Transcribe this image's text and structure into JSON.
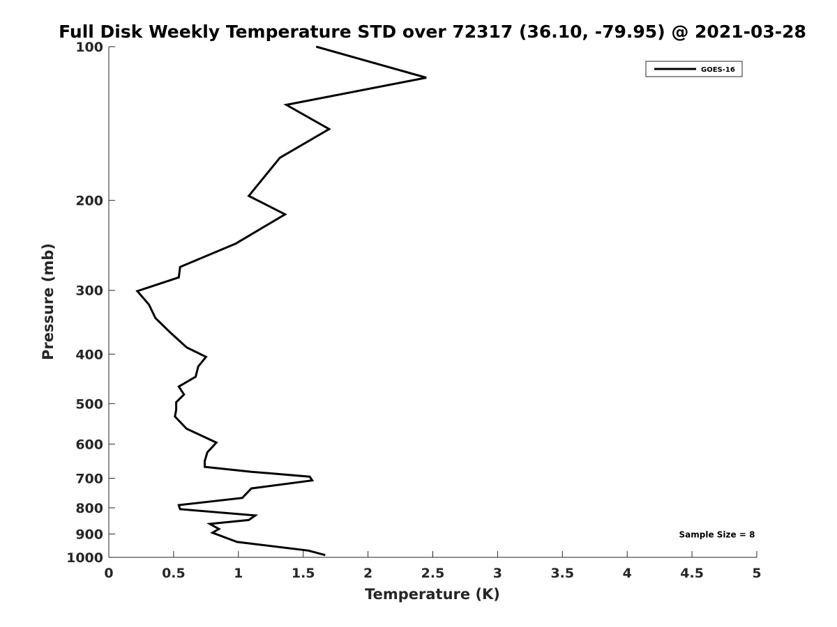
{
  "chart_data": {
    "type": "line",
    "title": "Full Disk Weekly Temperature STD over 72317 (36.10, -79.95) @ 2021-03-28",
    "xlabel": "Temperature (K)",
    "ylabel": "Pressure (mb)",
    "xlim": [
      0,
      5
    ],
    "ylim": [
      100,
      1000
    ],
    "y_scale": "log",
    "y_reversed": true,
    "grid": false,
    "legend_position": "top-right",
    "x_ticks": [
      0,
      0.5,
      1,
      1.5,
      2,
      2.5,
      3,
      3.5,
      4,
      4.5,
      5
    ],
    "x_tick_labels": [
      "0",
      "0.5",
      "1",
      "1.5",
      "2",
      "2.5",
      "3",
      "3.5",
      "4",
      "4.5",
      "5"
    ],
    "y_ticks": [
      100,
      200,
      300,
      400,
      500,
      600,
      700,
      800,
      900,
      1000
    ],
    "y_tick_labels": [
      "100",
      "200",
      "300",
      "400",
      "500",
      "600",
      "700",
      "800",
      "900",
      "1000"
    ],
    "series": [
      {
        "name": "GOES-16",
        "color": "#000000",
        "x": [
          1.6,
          2.45,
          1.37,
          1.7,
          1.32,
          1.08,
          1.36,
          0.98,
          0.55,
          0.54,
          0.22,
          0.31,
          0.36,
          0.47,
          0.6,
          0.75,
          0.69,
          0.67,
          0.54,
          0.58,
          0.52,
          0.52,
          0.51,
          0.6,
          0.83,
          0.76,
          0.74,
          0.74,
          1.1,
          1.55,
          1.57,
          1.1,
          1.03,
          0.54,
          0.55,
          1.13,
          1.08,
          0.78,
          0.85,
          0.8,
          0.99,
          1.54,
          1.67
        ],
        "y": [
          100,
          115,
          130,
          145,
          165,
          196,
          213,
          243,
          270,
          283,
          301,
          320,
          340,
          362,
          388,
          405,
          423,
          443,
          463,
          480,
          497,
          514,
          530,
          560,
          596,
          623,
          648,
          665,
          680,
          695,
          707,
          733,
          765,
          790,
          805,
          828,
          845,
          860,
          880,
          895,
          933,
          970,
          990
        ]
      }
    ],
    "annotations": [
      {
        "text": "Sample Size = 8",
        "x": 4.4,
        "y": 900
      }
    ]
  }
}
